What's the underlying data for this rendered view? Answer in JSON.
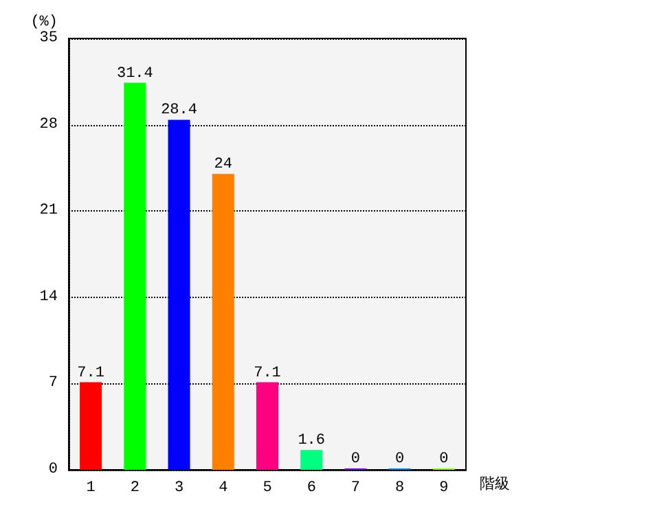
{
  "chart_data": {
    "type": "bar",
    "ylabel": "(%)",
    "xlabel": "階級",
    "categories": [
      "1",
      "2",
      "3",
      "4",
      "5",
      "6",
      "7",
      "8",
      "9"
    ],
    "values": [
      7.1,
      31.4,
      28.4,
      24,
      7.1,
      1.6,
      0,
      0,
      0
    ],
    "colors": [
      "#ff0000",
      "#00ff00",
      "#0000ff",
      "#ff8000",
      "#ff0080",
      "#00ff80",
      "#8000ff",
      "#0080ff",
      "#80ff00"
    ],
    "ylim": [
      0,
      35
    ],
    "yticks": [
      0,
      7,
      14,
      21,
      28,
      35
    ],
    "grid": "y",
    "data_labels": true
  }
}
